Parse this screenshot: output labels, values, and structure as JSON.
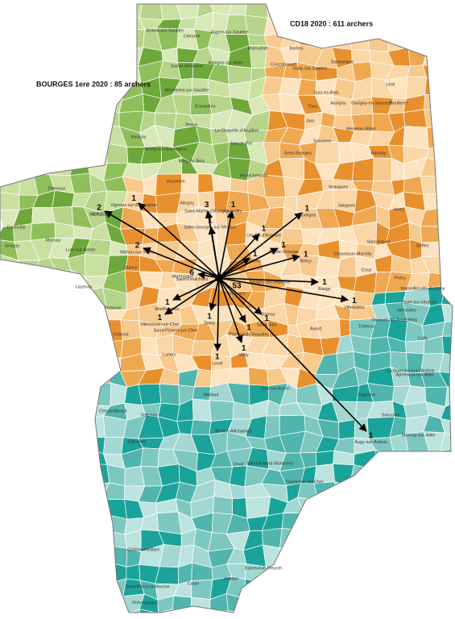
{
  "titles": {
    "department": "CD18 2020 : 611 archers",
    "club": "BOURGES 1ere 2020 : 85 archers"
  },
  "center": {
    "commune": "Bourges",
    "count": 53
  },
  "arrows": [
    {
      "count": 2,
      "commune": "VIERZON"
    },
    {
      "count": 2,
      "commune": "Mehun-sur-Yèvre"
    },
    {
      "count": 3,
      "commune": "Saint-Martin-d'Auxigny"
    },
    {
      "count": 1,
      "commune": "Vignoux-sur-Barangeon"
    },
    {
      "count": 1,
      "commune": "Quantilly"
    },
    {
      "count": 1,
      "commune": "Saint-Georges-sur-Moulon"
    },
    {
      "count": 1,
      "commune": "Les Aix-d'Angillon"
    },
    {
      "count": 1,
      "commune": "Montigny"
    },
    {
      "count": 1,
      "commune": "Sainte-Solange"
    },
    {
      "count": 1,
      "commune": "Bréçy"
    },
    {
      "count": 1,
      "commune": "Villequiers"
    },
    {
      "count": 1,
      "commune": "Baugy"
    },
    {
      "count": 6,
      "commune": "Saint-Doulchard"
    },
    {
      "count": 1,
      "commune": "Morthomiers"
    },
    {
      "count": 1,
      "commune": "Villeneuve-sur-Cher"
    },
    {
      "count": 1,
      "commune": "Trouy"
    },
    {
      "count": 1,
      "commune": "Plaimpied-Givaudins"
    },
    {
      "count": 1,
      "commune": "Levet"
    },
    {
      "count": 1,
      "commune": "Vorly"
    },
    {
      "count": 1,
      "commune": "Saint-Just"
    },
    {
      "count": 1,
      "commune": "Augy-sur-Aubois"
    },
    {
      "count": 1,
      "commune": "Fussy"
    }
  ],
  "communes": [
    "Brinon-sur-Sauldre",
    "Clémont",
    "Argent-sur-Sauldre",
    "Blancafort",
    "Sainte-Montaine",
    "Aubigny-sur-Nère",
    "Ménétréol-sur-Sauldre",
    "Ennordres",
    "Presly",
    "Nançay",
    "Neuvy-sur-Barangeon",
    "Méry-ès-Bois",
    "Ivoy-le-Pré",
    "La Chapelle-d'Angillon",
    "Vouzeron",
    "Allogny",
    "Henrichemont",
    "Concressault",
    "Barlieu",
    "Vailly-sur-Sauldre",
    "Sury-ès-Bois",
    "Santranges",
    "Léré",
    "Boulleret",
    "Savigny-en-Sancerre",
    "Assigny",
    "Thou",
    "Jars",
    "Sancerre",
    "Menetou-Râtel",
    "Sens-Beaujeu",
    "Veaugues",
    "Jalognes",
    "Sancergues",
    "Nérondes",
    "Chaumoux-Marcilly",
    "Ourouer-les-Bourdelins",
    "La Guerche-sur-l'Aubois",
    "Sancoins",
    "Dun-sur-Auron",
    "Saint-Amand-Montrond",
    "Lignières",
    "Châteaumeillant",
    "Culan",
    "Préveranges",
    "Saint-Priest-la-Marche",
    "Vesdun",
    "Epineuil-le-Fleuriel",
    "Charenton-du-Cher",
    "Thénioux",
    "Genouilly",
    "Graçay",
    "Massay",
    "Lury-sur-Arnon",
    "Chârost",
    "Lunery",
    "Vallenay",
    "Chezal-Benoît",
    "Meillant",
    "Bruère-Allichamps",
    "Orval",
    "Avord",
    "Savigny-en-Septaine",
    "Osmoy",
    "Marmagne",
    "Quincy",
    "Lazenay",
    "Poisieux",
    "Saint-Florent-sur-Cher",
    "Sagonne",
    "Cuffy",
    "Apremont-sur-Allier",
    "Mornay-sur-Allier",
    "Torteron",
    "Jouet-sur-l'Aubois",
    "Bannay",
    "Herry",
    "Précy",
    "Beffes",
    "Couy",
    "Marseilles-lès-Aubigny"
  ]
}
